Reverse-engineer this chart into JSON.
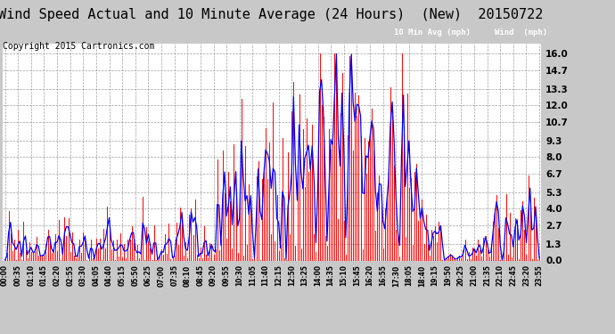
{
  "title": "Wind Speed Actual and 10 Minute Average (24 Hours)  (New)  20150722",
  "copyright": "Copyright 2015 Cartronics.com",
  "yticks": [
    0.0,
    1.3,
    2.7,
    4.0,
    5.3,
    6.7,
    8.0,
    9.3,
    10.7,
    12.0,
    13.3,
    14.7,
    16.0
  ],
  "ylim": [
    0.0,
    16.8
  ],
  "legend_blue_label": "10 Min Avg (mph)",
  "legend_red_label": "Wind  (mph)",
  "fig_bg_color": "#c8c8c8",
  "plot_bg_color": "#ffffff",
  "title_fontsize": 11,
  "copyright_fontsize": 7,
  "tick_interval_minutes": 35
}
